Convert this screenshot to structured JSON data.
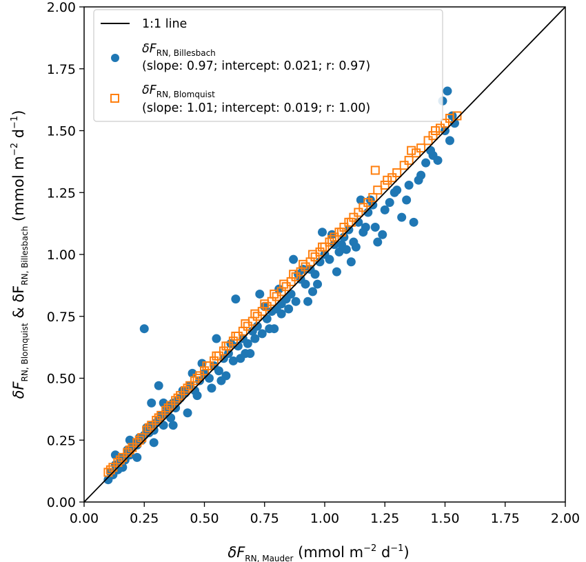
{
  "chart_data": {
    "type": "scatter",
    "xlabel": {
      "main": "δF",
      "sub": "RN, Mauder",
      "units_pre": " (mmol m",
      "units_exp1": "−2",
      "units_mid": " d",
      "units_exp2": "−1",
      "units_post": ")"
    },
    "ylabel": {
      "main1": "δF",
      "sub1": "RN, Blomquist",
      "amp": " & δF",
      "sub2": "RN, Billesbach",
      "units_pre": " (mmol m",
      "units_exp1": "−2",
      "units_mid": " d",
      "units_exp2": "−1",
      "units_post": ")"
    },
    "xlim": [
      0.0,
      2.0
    ],
    "ylim": [
      0.0,
      2.0
    ],
    "xticks": [
      "0.00",
      "0.25",
      "0.50",
      "0.75",
      "1.00",
      "1.25",
      "1.50",
      "1.75",
      "2.00"
    ],
    "yticks": [
      "0.00",
      "0.25",
      "0.50",
      "0.75",
      "1.00",
      "1.25",
      "1.50",
      "1.75",
      "2.00"
    ],
    "grid": false,
    "legend_position": "top-left",
    "reference_line": {
      "label": "1:1 line",
      "slope": 1,
      "intercept": 0,
      "color": "#000000"
    },
    "series": [
      {
        "name": "δF RN, Billesbach",
        "name_main": "δF",
        "name_sub": "RN, Billesbach",
        "stats": "(slope: 0.97; intercept: 0.021; r: 0.97)",
        "marker": "circle",
        "color": "#1f77b4",
        "x": [
          0.1,
          0.11,
          0.12,
          0.13,
          0.14,
          0.15,
          0.16,
          0.17,
          0.18,
          0.19,
          0.2,
          0.21,
          0.22,
          0.23,
          0.24,
          0.25,
          0.26,
          0.27,
          0.28,
          0.29,
          0.3,
          0.31,
          0.32,
          0.33,
          0.34,
          0.35,
          0.36,
          0.37,
          0.38,
          0.39,
          0.4,
          0.42,
          0.44,
          0.46,
          0.48,
          0.5,
          0.52,
          0.54,
          0.56,
          0.58,
          0.6,
          0.62,
          0.64,
          0.66,
          0.68,
          0.7,
          0.72,
          0.74,
          0.76,
          0.78,
          0.8,
          0.82,
          0.84,
          0.86,
          0.88,
          0.9,
          0.92,
          0.94,
          0.96,
          0.98,
          1.0,
          1.02,
          1.04,
          1.06,
          1.08,
          1.1,
          1.12,
          1.14,
          1.16,
          1.18,
          1.2,
          1.25,
          1.3,
          1.35,
          1.4,
          1.45,
          1.5,
          1.52,
          1.54,
          0.25,
          0.31,
          0.47,
          0.55,
          0.63,
          0.67,
          0.73,
          0.82,
          0.87,
          0.93,
          1.07,
          1.11,
          1.17,
          1.22,
          1.27,
          1.32,
          1.37,
          1.42,
          1.47,
          1.53,
          0.28,
          0.33,
          0.45,
          0.57,
          0.65,
          0.71,
          0.77,
          0.85,
          0.91,
          0.97,
          1.03,
          1.09,
          1.15,
          1.21,
          1.29,
          1.39,
          1.44,
          1.49,
          0.13,
          0.16,
          0.19,
          0.22,
          0.26,
          0.29,
          0.34,
          0.37,
          0.41,
          0.43,
          0.49,
          0.53,
          0.59,
          0.61,
          0.69,
          0.75,
          0.79,
          0.81,
          0.89,
          0.95,
          0.99,
          1.05,
          1.13,
          1.19,
          1.24,
          1.34,
          1.51
        ],
        "y": [
          0.09,
          0.12,
          0.11,
          0.15,
          0.13,
          0.16,
          0.18,
          0.17,
          0.21,
          0.19,
          0.22,
          0.24,
          0.23,
          0.26,
          0.25,
          0.27,
          0.3,
          0.28,
          0.31,
          0.29,
          0.32,
          0.33,
          0.35,
          0.31,
          0.36,
          0.37,
          0.34,
          0.4,
          0.38,
          0.41,
          0.42,
          0.44,
          0.47,
          0.45,
          0.49,
          0.52,
          0.5,
          0.55,
          0.53,
          0.58,
          0.6,
          0.57,
          0.63,
          0.66,
          0.64,
          0.69,
          0.71,
          0.68,
          0.74,
          0.77,
          0.78,
          0.76,
          0.82,
          0.84,
          0.81,
          0.9,
          0.88,
          0.94,
          0.92,
          0.97,
          1.0,
          0.98,
          1.04,
          1.01,
          1.07,
          1.1,
          1.05,
          1.13,
          1.09,
          1.17,
          1.2,
          1.18,
          1.26,
          1.28,
          1.32,
          1.4,
          1.5,
          1.46,
          1.53,
          0.7,
          0.47,
          0.43,
          0.66,
          0.82,
          0.6,
          0.84,
          0.8,
          0.98,
          0.81,
          1.04,
          0.97,
          1.11,
          1.05,
          1.21,
          1.15,
          1.13,
          1.37,
          1.38,
          1.56,
          0.4,
          0.4,
          0.52,
          0.49,
          0.58,
          0.66,
          0.7,
          0.78,
          0.94,
          0.88,
          1.08,
          1.02,
          1.22,
          1.11,
          1.25,
          1.3,
          1.42,
          1.62,
          0.19,
          0.14,
          0.25,
          0.18,
          0.3,
          0.24,
          0.39,
          0.31,
          0.45,
          0.36,
          0.56,
          0.46,
          0.51,
          0.64,
          0.6,
          0.79,
          0.7,
          0.86,
          0.92,
          0.85,
          1.09,
          0.93,
          1.03,
          1.22,
          1.08,
          1.22,
          1.66
        ]
      },
      {
        "name": "δF RN, Blomquist",
        "name_main": "δF",
        "name_sub": "RN, Blomquist",
        "stats": "(slope: 1.01; intercept: 0.019; r: 1.00)",
        "marker": "square",
        "color": "#ff7f0e",
        "x": [
          0.1,
          0.12,
          0.14,
          0.16,
          0.18,
          0.2,
          0.22,
          0.24,
          0.26,
          0.28,
          0.3,
          0.32,
          0.34,
          0.36,
          0.38,
          0.4,
          0.42,
          0.44,
          0.46,
          0.48,
          0.5,
          0.52,
          0.54,
          0.56,
          0.58,
          0.6,
          0.62,
          0.64,
          0.66,
          0.68,
          0.7,
          0.72,
          0.74,
          0.76,
          0.78,
          0.8,
          0.82,
          0.84,
          0.86,
          0.88,
          0.9,
          0.92,
          0.94,
          0.96,
          0.98,
          1.0,
          1.02,
          1.04,
          1.06,
          1.08,
          1.1,
          1.12,
          1.14,
          1.18,
          1.2,
          1.22,
          1.25,
          1.28,
          1.3,
          1.33,
          1.35,
          1.38,
          1.4,
          1.43,
          1.45,
          1.48,
          1.5,
          1.52,
          1.55,
          0.11,
          0.15,
          0.19,
          0.23,
          0.27,
          0.31,
          0.35,
          0.39,
          0.43,
          0.47,
          0.51,
          0.55,
          0.59,
          0.63,
          0.67,
          0.71,
          0.75,
          0.79,
          0.83,
          0.87,
          0.91,
          0.95,
          0.99,
          1.03,
          1.07,
          1.11,
          1.16,
          1.21,
          1.26,
          1.36,
          1.46
        ],
        "y": [
          0.12,
          0.14,
          0.16,
          0.18,
          0.2,
          0.22,
          0.24,
          0.26,
          0.29,
          0.31,
          0.33,
          0.35,
          0.37,
          0.39,
          0.41,
          0.43,
          0.45,
          0.47,
          0.49,
          0.51,
          0.53,
          0.55,
          0.57,
          0.59,
          0.61,
          0.63,
          0.65,
          0.67,
          0.69,
          0.71,
          0.73,
          0.75,
          0.77,
          0.79,
          0.81,
          0.83,
          0.85,
          0.87,
          0.89,
          0.91,
          0.93,
          0.95,
          0.97,
          0.99,
          1.01,
          1.03,
          1.05,
          1.07,
          1.09,
          1.11,
          1.13,
          1.15,
          1.17,
          1.21,
          1.23,
          1.26,
          1.28,
          1.31,
          1.33,
          1.36,
          1.38,
          1.41,
          1.43,
          1.46,
          1.48,
          1.51,
          1.53,
          1.55,
          1.56,
          0.13,
          0.17,
          0.21,
          0.25,
          0.3,
          0.34,
          0.38,
          0.42,
          0.46,
          0.5,
          0.55,
          0.59,
          0.63,
          0.67,
          0.72,
          0.76,
          0.8,
          0.84,
          0.88,
          0.92,
          0.96,
          1.0,
          1.03,
          1.06,
          1.09,
          1.13,
          1.19,
          1.34,
          1.3,
          1.42,
          1.5
        ]
      }
    ]
  }
}
